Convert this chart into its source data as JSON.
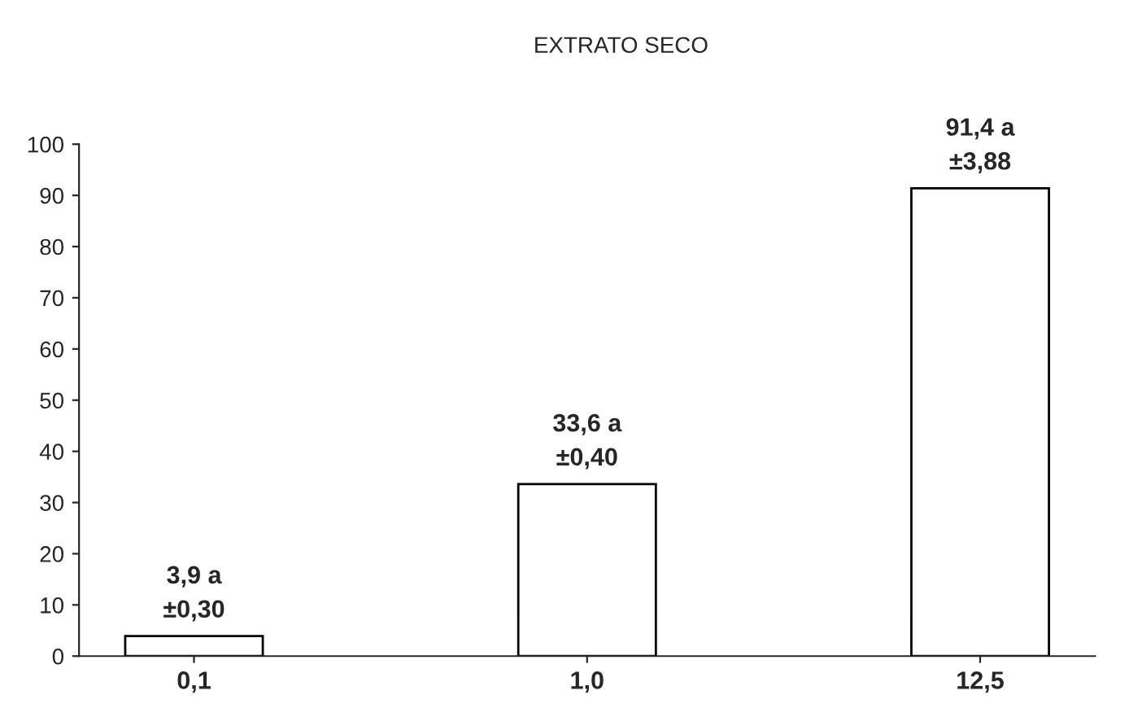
{
  "chart_data": {
    "type": "bar",
    "title": "EXTRATO SECO",
    "categories": [
      "0,1",
      "1,0",
      "12,5"
    ],
    "values": [
      3.9,
      33.6,
      91.4
    ],
    "value_labels": [
      "3,9 a\n±0,30",
      "33,6 a\n±0,40",
      "91,4 a\n±3,88"
    ],
    "color": "#ffffff",
    "ylim": [
      0,
      100
    ],
    "yticks": [
      0,
      10,
      20,
      30,
      40,
      50,
      60,
      70,
      80,
      90,
      100
    ],
    "grid": false,
    "legend": false
  }
}
